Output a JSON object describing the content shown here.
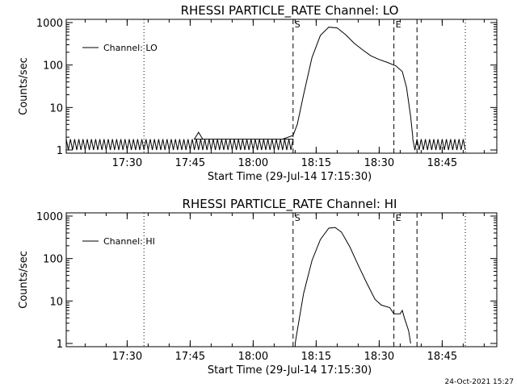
{
  "chart_data": [
    {
      "type": "line",
      "title": "RHESSI PARTICLE_RATE Channel: LO",
      "xlabel": "Start Time (29-Jul-14 17:15:30)",
      "ylabel": "Counts/sec",
      "yscale": "log",
      "ylim": [
        1,
        1000
      ],
      "xlim": [
        "17:15:30",
        "18:58:00"
      ],
      "x_ticks": [
        {
          "label": "17:30",
          "t": "17:30"
        },
        {
          "label": "17:45",
          "t": "17:45"
        },
        {
          "label": "18:00",
          "t": "18:00"
        },
        {
          "label": "18:15",
          "t": "18:15"
        },
        {
          "label": "18:30",
          "t": "18:30"
        },
        {
          "label": "18:45",
          "t": "18:45"
        }
      ],
      "y_ticks": [
        {
          "label": "1",
          "v": 1
        },
        {
          "label": "10",
          "v": 10
        },
        {
          "label": "100",
          "v": 100
        },
        {
          "label": "1000",
          "v": 1000
        }
      ],
      "grid": false,
      "legend_position": "top-left",
      "markers": [
        {
          "label": "S",
          "t": "18:09:30",
          "style": "dashed"
        },
        {
          "label": "E",
          "t": "18:33:30",
          "style": "dashed"
        }
      ],
      "extra_lines": [
        {
          "t": "17:34:00",
          "style": "dotted"
        },
        {
          "t": "18:39:00",
          "style": "dashed"
        },
        {
          "t": "18:50:30",
          "style": "dotted"
        }
      ],
      "series": [
        {
          "name": "Channel: LO",
          "noise_band": {
            "t_start": "17:15:30",
            "t_end": "18:09:30",
            "low": 1.0,
            "high": 1.8
          },
          "noise_band_2": {
            "t_start": "18:38:00",
            "t_end": "18:50:30",
            "low": 1.0,
            "high": 1.8
          },
          "points": [
            {
              "t": "17:46:00",
              "v": 1.8
            },
            {
              "t": "17:47:00",
              "v": 2.6
            },
            {
              "t": "17:48:00",
              "v": 1.8
            },
            {
              "t": "18:07:00",
              "v": 1.8
            },
            {
              "t": "18:09:30",
              "v": 2.2
            },
            {
              "t": "18:10:30",
              "v": 4
            },
            {
              "t": "18:12:00",
              "v": 20
            },
            {
              "t": "18:14:00",
              "v": 150
            },
            {
              "t": "18:16:00",
              "v": 500
            },
            {
              "t": "18:18:00",
              "v": 780
            },
            {
              "t": "18:20:00",
              "v": 750
            },
            {
              "t": "18:22:00",
              "v": 520
            },
            {
              "t": "18:24:00",
              "v": 330
            },
            {
              "t": "18:26:00",
              "v": 230
            },
            {
              "t": "18:28:00",
              "v": 165
            },
            {
              "t": "18:30:00",
              "v": 135
            },
            {
              "t": "18:32:00",
              "v": 115
            },
            {
              "t": "18:34:00",
              "v": 95
            },
            {
              "t": "18:35:30",
              "v": 70
            },
            {
              "t": "18:36:30",
              "v": 30
            },
            {
              "t": "18:37:30",
              "v": 6
            },
            {
              "t": "18:38:00",
              "v": 2
            }
          ]
        }
      ]
    },
    {
      "type": "line",
      "title": "RHESSI PARTICLE_RATE Channel: HI",
      "xlabel": "Start Time (29-Jul-14 17:15:30)",
      "ylabel": "Counts/sec",
      "yscale": "log",
      "ylim": [
        1,
        1000
      ],
      "xlim": [
        "17:15:30",
        "18:58:00"
      ],
      "x_ticks": [
        {
          "label": "17:30",
          "t": "17:30"
        },
        {
          "label": "17:45",
          "t": "17:45"
        },
        {
          "label": "18:00",
          "t": "18:00"
        },
        {
          "label": "18:15",
          "t": "18:15"
        },
        {
          "label": "18:30",
          "t": "18:30"
        },
        {
          "label": "18:45",
          "t": "18:45"
        }
      ],
      "y_ticks": [
        {
          "label": "1",
          "v": 1
        },
        {
          "label": "10",
          "v": 10
        },
        {
          "label": "100",
          "v": 100
        },
        {
          "label": "1000",
          "v": 1000
        }
      ],
      "grid": false,
      "legend_position": "top-left",
      "markers": [
        {
          "label": "S",
          "t": "18:09:30",
          "style": "dashed"
        },
        {
          "label": "E",
          "t": "18:33:30",
          "style": "dashed"
        }
      ],
      "extra_lines": [
        {
          "t": "17:34:00",
          "style": "dotted"
        },
        {
          "t": "18:39:00",
          "style": "dashed"
        },
        {
          "t": "18:50:30",
          "style": "dotted"
        }
      ],
      "series": [
        {
          "name": "Channel: HI",
          "points": [
            {
              "t": "18:10:00",
              "v": 1
            },
            {
              "t": "18:10:30",
              "v": 2
            },
            {
              "t": "18:12:00",
              "v": 15
            },
            {
              "t": "18:14:00",
              "v": 90
            },
            {
              "t": "18:16:00",
              "v": 280
            },
            {
              "t": "18:18:00",
              "v": 520
            },
            {
              "t": "18:19:30",
              "v": 540
            },
            {
              "t": "18:21:00",
              "v": 420
            },
            {
              "t": "18:23:00",
              "v": 190
            },
            {
              "t": "18:25:00",
              "v": 70
            },
            {
              "t": "18:27:00",
              "v": 27
            },
            {
              "t": "18:29:00",
              "v": 11
            },
            {
              "t": "18:30:30",
              "v": 8
            },
            {
              "t": "18:32:30",
              "v": 7
            },
            {
              "t": "18:33:30",
              "v": 5
            },
            {
              "t": "18:35:00",
              "v": 5
            },
            {
              "t": "18:35:30",
              "v": 6
            },
            {
              "t": "18:36:00",
              "v": 4
            },
            {
              "t": "18:37:00",
              "v": 2
            },
            {
              "t": "18:37:30",
              "v": 1
            }
          ]
        }
      ]
    }
  ],
  "footer": {
    "timestamp": "24-Oct-2021 15:27"
  }
}
